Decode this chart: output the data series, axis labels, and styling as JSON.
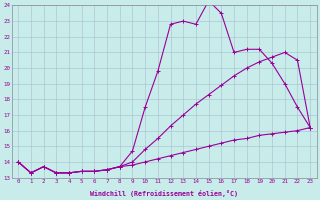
{
  "xlabel": "Windchill (Refroidissement éolien,°C)",
  "xlim": [
    -0.5,
    23.5
  ],
  "ylim": [
    13,
    24
  ],
  "yticks": [
    13,
    14,
    15,
    16,
    17,
    18,
    19,
    20,
    21,
    22,
    23,
    24
  ],
  "xticks": [
    0,
    1,
    2,
    3,
    4,
    5,
    6,
    7,
    8,
    9,
    10,
    11,
    12,
    13,
    14,
    15,
    16,
    17,
    18,
    19,
    20,
    21,
    22,
    23
  ],
  "bg_color": "#c8ecea",
  "line_color": "#990099",
  "grid_color": "#aabbcc",
  "line1_x": [
    0,
    1,
    2,
    3,
    4,
    5,
    6,
    7,
    8,
    9,
    10,
    11,
    12,
    13,
    14,
    15,
    16,
    17,
    18,
    19,
    20,
    21,
    22,
    23
  ],
  "line1_y": [
    14.0,
    13.3,
    13.7,
    13.3,
    13.3,
    13.4,
    13.4,
    13.5,
    13.7,
    14.7,
    17.5,
    19.8,
    22.8,
    23.0,
    22.8,
    24.3,
    23.5,
    21.0,
    21.2,
    21.2,
    20.3,
    19.0,
    17.5,
    16.2
  ],
  "line2_x": [
    0,
    1,
    2,
    3,
    4,
    5,
    6,
    7,
    8,
    9,
    10,
    11,
    12,
    13,
    14,
    15,
    16,
    17,
    18,
    19,
    20,
    21,
    22,
    23
  ],
  "line2_y": [
    14.0,
    13.3,
    13.7,
    13.3,
    13.3,
    13.4,
    13.4,
    13.5,
    13.7,
    14.0,
    14.8,
    15.5,
    16.3,
    17.0,
    17.7,
    18.3,
    18.9,
    19.5,
    20.0,
    20.4,
    20.7,
    21.0,
    20.5,
    16.2
  ],
  "line3_x": [
    0,
    1,
    2,
    3,
    4,
    5,
    6,
    7,
    8,
    9,
    10,
    11,
    12,
    13,
    14,
    15,
    16,
    17,
    18,
    19,
    20,
    21,
    22,
    23
  ],
  "line3_y": [
    14.0,
    13.3,
    13.7,
    13.3,
    13.3,
    13.4,
    13.4,
    13.5,
    13.7,
    13.8,
    14.0,
    14.2,
    14.4,
    14.6,
    14.8,
    15.0,
    15.2,
    15.4,
    15.5,
    15.7,
    15.8,
    15.9,
    16.0,
    16.2
  ]
}
